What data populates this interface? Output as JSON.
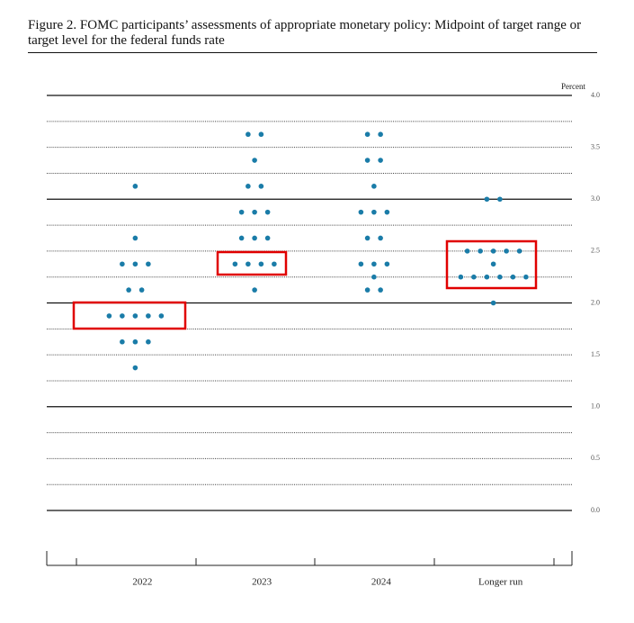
{
  "chart_data": {
    "type": "dot",
    "title": "Figure 2.  FOMC participants’ assessments of appropriate monetary policy: Midpoint of target range or target level for the federal funds rate",
    "y_unit": "Percent",
    "categories": [
      "2022",
      "2023",
      "2024",
      "Longer run"
    ],
    "dots": [
      [
        3.125,
        2.625,
        2.375,
        2.375,
        2.375,
        2.125,
        2.125,
        1.875,
        1.875,
        1.875,
        1.875,
        1.875,
        1.625,
        1.625,
        1.625,
        1.375
      ],
      [
        3.625,
        3.625,
        3.375,
        3.125,
        3.125,
        2.875,
        2.875,
        2.875,
        2.625,
        2.625,
        2.625,
        2.375,
        2.375,
        2.375,
        2.375,
        2.125
      ],
      [
        3.625,
        3.625,
        3.375,
        3.375,
        3.125,
        2.875,
        2.875,
        2.875,
        2.625,
        2.625,
        2.375,
        2.375,
        2.375,
        2.25,
        2.125,
        2.125
      ],
      [
        3.0,
        3.0,
        2.5,
        2.5,
        2.5,
        2.5,
        2.5,
        2.375,
        2.25,
        2.25,
        2.25,
        2.25,
        2.25,
        2.25,
        2.0
      ]
    ],
    "color": "#1a7ca8",
    "ylim": [
      0,
      4
    ],
    "yticks": [
      {
        "value": 0,
        "label": "0.0"
      },
      {
        "value": 0.5,
        "label": "0.5"
      },
      {
        "value": 1,
        "label": "1.0"
      },
      {
        "value": 1.5,
        "label": "1.5"
      },
      {
        "value": 2,
        "label": "2.0"
      },
      {
        "value": 2.5,
        "label": "2.5"
      },
      {
        "value": 3,
        "label": "3.0"
      },
      {
        "value": 3.5,
        "label": "3.5"
      },
      {
        "value": 4,
        "label": "4.0"
      }
    ],
    "ygrid": [
      0,
      0.25,
      0.5,
      0.75,
      1,
      1.25,
      1.5,
      1.75,
      2,
      2.25,
      2.5,
      2.75,
      3,
      3.25,
      3.5,
      3.75,
      4
    ]
  }
}
